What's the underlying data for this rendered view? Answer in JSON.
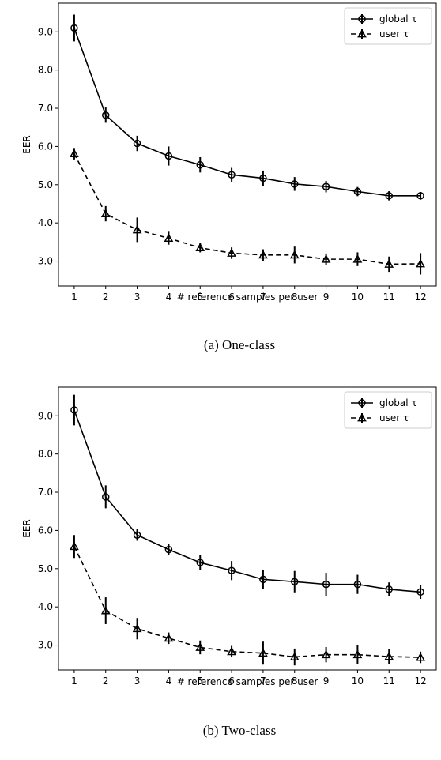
{
  "chart_data": [
    {
      "type": "line",
      "caption": "(a)  One-class",
      "xlabel": "# reference samples per user",
      "ylabel": "EER",
      "x": [
        1,
        2,
        3,
        4,
        5,
        6,
        7,
        8,
        9,
        10,
        11,
        12
      ],
      "xticks": [
        "1",
        "2",
        "3",
        "4",
        "5",
        "6",
        "7",
        "8",
        "9",
        "10",
        "11",
        "12"
      ],
      "yticks": [
        "3.0",
        "4.0",
        "5.0",
        "6.0",
        "7.0",
        "8.0",
        "9.0"
      ],
      "ylim": [
        2.35,
        9.75
      ],
      "legend_position": "top-right",
      "series": [
        {
          "name": "global τ",
          "marker": "circle",
          "linestyle": "solid",
          "values": [
            9.1,
            6.82,
            6.08,
            5.75,
            5.52,
            5.26,
            5.17,
            5.02,
            4.95,
            4.82,
            4.71,
            4.71
          ],
          "error": [
            0.35,
            0.2,
            0.2,
            0.25,
            0.2,
            0.18,
            0.2,
            0.18,
            0.15,
            0.12,
            0.12,
            0.1
          ]
        },
        {
          "name": "user τ",
          "marker": "triangle",
          "linestyle": "dashed",
          "values": [
            5.81,
            4.24,
            3.82,
            3.6,
            3.35,
            3.21,
            3.16,
            3.16,
            3.05,
            3.05,
            2.92,
            2.93
          ],
          "error": [
            0.15,
            0.2,
            0.32,
            0.17,
            0.12,
            0.15,
            0.15,
            0.22,
            0.15,
            0.18,
            0.2,
            0.28
          ]
        }
      ]
    },
    {
      "type": "line",
      "caption": "(b)  Two-class",
      "xlabel": "# reference samples per user",
      "ylabel": "EER",
      "x": [
        1,
        2,
        3,
        4,
        5,
        6,
        7,
        8,
        9,
        10,
        11,
        12
      ],
      "xticks": [
        "1",
        "2",
        "3",
        "4",
        "5",
        "6",
        "7",
        "8",
        "9",
        "10",
        "11",
        "12"
      ],
      "yticks": [
        "3.0",
        "4.0",
        "5.0",
        "6.0",
        "7.0",
        "8.0",
        "9.0"
      ],
      "ylim": [
        2.35,
        9.75
      ],
      "legend_position": "top-right",
      "series": [
        {
          "name": "global τ",
          "marker": "circle",
          "linestyle": "solid",
          "values": [
            9.15,
            6.88,
            5.88,
            5.5,
            5.16,
            4.95,
            4.72,
            4.66,
            4.59,
            4.59,
            4.46,
            4.39
          ],
          "error": [
            0.4,
            0.3,
            0.15,
            0.15,
            0.2,
            0.25,
            0.25,
            0.28,
            0.3,
            0.25,
            0.18,
            0.18
          ]
        },
        {
          "name": "user τ",
          "marker": "triangle",
          "linestyle": "dashed",
          "values": [
            5.58,
            3.9,
            3.43,
            3.18,
            2.94,
            2.83,
            2.79,
            2.69,
            2.75,
            2.75,
            2.7,
            2.68
          ],
          "error": [
            0.3,
            0.35,
            0.28,
            0.15,
            0.18,
            0.15,
            0.3,
            0.22,
            0.2,
            0.25,
            0.2,
            0.15
          ]
        }
      ]
    }
  ]
}
